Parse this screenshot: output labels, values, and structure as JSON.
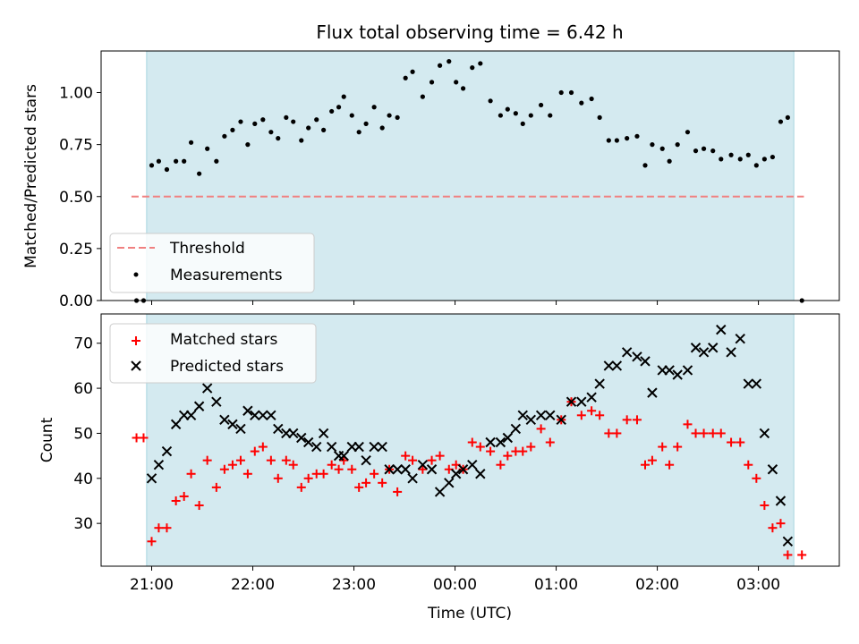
{
  "chart_data": [
    {
      "type": "scatter",
      "title": "Flux total observing time = 6.42 h",
      "xlabel": "",
      "ylabel": "Matched/Predicted stars",
      "x_unit": "hours relative to 00:00 UTC",
      "xlim": [
        -3.5,
        3.8
      ],
      "ylim": [
        0.0,
        1.2
      ],
      "yticks": [
        "0.00",
        "0.25",
        "0.50",
        "0.75",
        "1.00"
      ],
      "xticks": [
        "21:00",
        "22:00",
        "23:00",
        "00:00",
        "01:00",
        "02:00",
        "03:00"
      ],
      "shaded_interval": [
        -3.05,
        3.35
      ],
      "shade_color": "#d4eaf0",
      "legend_position": "lower left",
      "threshold": {
        "name": "Threshold",
        "value": 0.5,
        "x_range": [
          -3.2,
          3.45
        ],
        "color": "#f08080",
        "style": "dashed"
      },
      "series": [
        {
          "name": "Measurements",
          "color": "#000000",
          "marker": "dot",
          "x": [
            -3.15,
            -3.08,
            -3.0,
            -2.93,
            -2.85,
            -2.76,
            -2.68,
            -2.61,
            -2.53,
            -2.45,
            -2.36,
            -2.28,
            -2.2,
            -2.12,
            -2.05,
            -1.98,
            -1.9,
            -1.82,
            -1.75,
            -1.67,
            -1.6,
            -1.52,
            -1.45,
            -1.37,
            -1.3,
            -1.22,
            -1.15,
            -1.1,
            -1.02,
            -0.95,
            -0.88,
            -0.8,
            -0.72,
            -0.65,
            -0.57,
            -0.49,
            -0.42,
            -0.32,
            -0.23,
            -0.15,
            -0.06,
            0.01,
            0.08,
            0.17,
            0.25,
            0.35,
            0.45,
            0.52,
            0.6,
            0.67,
            0.75,
            0.85,
            0.94,
            1.05,
            1.15,
            1.25,
            1.35,
            1.43,
            1.52,
            1.6,
            1.7,
            1.8,
            1.88,
            1.95,
            2.05,
            2.12,
            2.2,
            2.3,
            2.38,
            2.46,
            2.55,
            2.63,
            2.73,
            2.82,
            2.9,
            2.98,
            3.06,
            3.14,
            3.22,
            3.29,
            3.43
          ],
          "y": [
            0.0,
            0.0,
            0.65,
            0.67,
            0.63,
            0.67,
            0.67,
            0.76,
            0.61,
            0.73,
            0.67,
            0.79,
            0.82,
            0.86,
            0.75,
            0.85,
            0.87,
            0.81,
            0.78,
            0.88,
            0.86,
            0.77,
            0.83,
            0.87,
            0.82,
            0.91,
            0.93,
            0.98,
            0.89,
            0.81,
            0.85,
            0.93,
            0.83,
            0.89,
            0.88,
            1.07,
            1.1,
            0.98,
            1.05,
            1.13,
            1.15,
            1.05,
            1.02,
            1.12,
            1.14,
            0.96,
            0.89,
            0.92,
            0.9,
            0.85,
            0.89,
            0.94,
            0.89,
            1.0,
            1.0,
            0.95,
            0.97,
            0.88,
            0.77,
            0.77,
            0.78,
            0.79,
            0.65,
            0.75,
            0.73,
            0.67,
            0.75,
            0.81,
            0.72,
            0.73,
            0.72,
            0.68,
            0.7,
            0.68,
            0.7,
            0.65,
            0.68,
            0.69,
            0.86,
            0.88,
            0.0
          ]
        }
      ]
    },
    {
      "type": "scatter",
      "title": "",
      "xlabel": "Time (UTC)",
      "ylabel": "Count",
      "x_unit": "hours relative to 00:00 UTC",
      "xlim": [
        -3.5,
        3.8
      ],
      "ylim": [
        20.5,
        76.5
      ],
      "yticks": [
        "30",
        "40",
        "50",
        "60",
        "70"
      ],
      "xticks": [
        "21:00",
        "22:00",
        "23:00",
        "00:00",
        "01:00",
        "02:00",
        "03:00"
      ],
      "shaded_interval": [
        -3.05,
        3.35
      ],
      "legend_position": "upper left",
      "series": [
        {
          "name": "Matched stars",
          "color": "#ff0000",
          "marker": "plus",
          "x": [
            -3.15,
            -3.08,
            -3.0,
            -2.93,
            -2.85,
            -2.76,
            -2.68,
            -2.61,
            -2.53,
            -2.45,
            -2.36,
            -2.28,
            -2.2,
            -2.12,
            -2.05,
            -1.98,
            -1.9,
            -1.82,
            -1.75,
            -1.67,
            -1.6,
            -1.52,
            -1.45,
            -1.37,
            -1.3,
            -1.22,
            -1.15,
            -1.1,
            -1.02,
            -0.95,
            -0.88,
            -0.8,
            -0.72,
            -0.65,
            -0.57,
            -0.49,
            -0.42,
            -0.32,
            -0.23,
            -0.15,
            -0.06,
            0.01,
            0.08,
            0.17,
            0.25,
            0.35,
            0.45,
            0.52,
            0.6,
            0.67,
            0.75,
            0.85,
            0.94,
            1.05,
            1.15,
            1.25,
            1.35,
            1.43,
            1.52,
            1.6,
            1.7,
            1.8,
            1.88,
            1.95,
            2.05,
            2.12,
            2.2,
            2.3,
            2.38,
            2.46,
            2.55,
            2.63,
            2.73,
            2.82,
            2.9,
            2.98,
            3.06,
            3.14,
            3.22,
            3.29,
            3.43
          ],
          "y": [
            49,
            49,
            26,
            29,
            29,
            35,
            36,
            41,
            34,
            44,
            38,
            42,
            43,
            44,
            41,
            46,
            47,
            44,
            40,
            44,
            43,
            38,
            40,
            41,
            41,
            43,
            42,
            44,
            42,
            38,
            39,
            41,
            39,
            42,
            37,
            45,
            44,
            42,
            44,
            45,
            42,
            43,
            42,
            48,
            47,
            46,
            43,
            45,
            46,
            46,
            47,
            51,
            48,
            53,
            57,
            54,
            55,
            54,
            50,
            50,
            53,
            53,
            43,
            44,
            47,
            43,
            47,
            52,
            50,
            50,
            50,
            50,
            48,
            48,
            43,
            40,
            34,
            29,
            30,
            23,
            23
          ]
        },
        {
          "name": "Predicted stars",
          "color": "#000000",
          "marker": "cross",
          "x": [
            -3.0,
            -2.93,
            -2.85,
            -2.76,
            -2.68,
            -2.61,
            -2.53,
            -2.45,
            -2.36,
            -2.28,
            -2.2,
            -2.12,
            -2.05,
            -1.98,
            -1.9,
            -1.82,
            -1.75,
            -1.67,
            -1.6,
            -1.52,
            -1.45,
            -1.37,
            -1.3,
            -1.22,
            -1.15,
            -1.1,
            -1.02,
            -0.95,
            -0.88,
            -0.8,
            -0.72,
            -0.65,
            -0.57,
            -0.49,
            -0.42,
            -0.32,
            -0.23,
            -0.15,
            -0.06,
            0.01,
            0.08,
            0.17,
            0.25,
            0.35,
            0.45,
            0.52,
            0.6,
            0.67,
            0.75,
            0.85,
            0.94,
            1.05,
            1.15,
            1.25,
            1.35,
            1.43,
            1.52,
            1.6,
            1.7,
            1.8,
            1.88,
            1.95,
            2.05,
            2.12,
            2.2,
            2.3,
            2.38,
            2.46,
            2.55,
            2.63,
            2.73,
            2.82,
            2.9,
            2.98,
            3.06,
            3.14,
            3.22,
            3.29
          ],
          "y": [
            40,
            43,
            46,
            52,
            54,
            54,
            56,
            60,
            57,
            53,
            52,
            51,
            55,
            54,
            54,
            54,
            51,
            50,
            50,
            49,
            48,
            47,
            50,
            47,
            45,
            45,
            47,
            47,
            44,
            47,
            47,
            42,
            42,
            42,
            40,
            43,
            42,
            37,
            39,
            41,
            42,
            43,
            41,
            48,
            48,
            49,
            51,
            54,
            53,
            54,
            54,
            53,
            57,
            57,
            58,
            61,
            65,
            65,
            68,
            67,
            66,
            59,
            64,
            64,
            63,
            64,
            69,
            68,
            69,
            73,
            68,
            71,
            61,
            61,
            50,
            42,
            35,
            26
          ]
        }
      ]
    }
  ]
}
